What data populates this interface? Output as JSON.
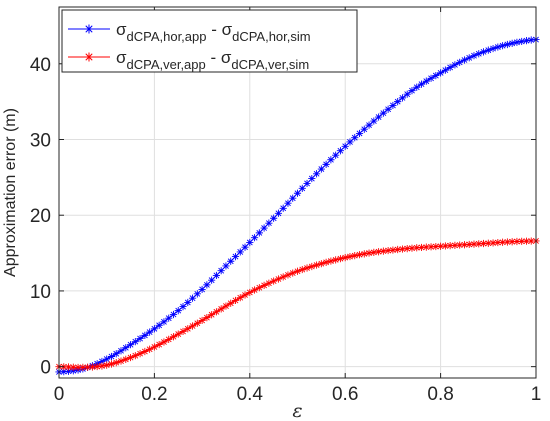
{
  "chart_data": {
    "type": "line",
    "title": "",
    "xlabel": "ε",
    "ylabel": "Approximation error (m)",
    "xlim": [
      0,
      1
    ],
    "ylim": [
      -1.5,
      47.5
    ],
    "x_ticks": [
      0,
      0.2,
      0.4,
      0.6,
      0.8,
      1
    ],
    "x_tick_labels": [
      "0",
      "0.2",
      "0.4",
      "0.6",
      "0.8",
      "1"
    ],
    "y_ticks": [
      0,
      10,
      20,
      30,
      40
    ],
    "y_tick_labels": [
      "0",
      "10",
      "20",
      "30",
      "40"
    ],
    "grid": true,
    "legend_position": "top-left",
    "marker": "asterisk",
    "series": [
      {
        "name": "σdCPA,hor,app - σdCPA,hor,sim",
        "legend": {
          "sym": "σ",
          "sub1": "dCPA,hor,app",
          "op": " - ",
          "sym2": "σ",
          "sub2": "dCPA,hor,sim"
        },
        "color": "#0000ff",
        "x": [
          0,
          0.05,
          0.1,
          0.15,
          0.2,
          0.25,
          0.3,
          0.35,
          0.4,
          0.45,
          0.5,
          0.55,
          0.6,
          0.65,
          0.7,
          0.75,
          0.8,
          0.85,
          0.9,
          0.95,
          1
        ],
        "y": [
          -0.7,
          -0.3,
          1.0,
          2.9,
          5.0,
          7.4,
          10.2,
          13.3,
          16.4,
          19.6,
          22.9,
          26.1,
          29.1,
          31.9,
          34.5,
          36.9,
          38.8,
          40.5,
          41.8,
          42.7,
          43.2
        ]
      },
      {
        "name": "σdCPA,ver,app - σdCPA,ver,sim",
        "legend": {
          "sym": "σ",
          "sub1": "dCPA,ver,app",
          "op": " - ",
          "sym2": "σ",
          "sub2": "dCPA,ver,sim"
        },
        "color": "#ff0000",
        "x": [
          0,
          0.05,
          0.1,
          0.15,
          0.2,
          0.25,
          0.3,
          0.35,
          0.4,
          0.45,
          0.5,
          0.55,
          0.6,
          0.65,
          0.7,
          0.75,
          0.8,
          0.85,
          0.9,
          0.95,
          1
        ],
        "y": [
          0.0,
          -0.1,
          0.2,
          1.2,
          2.6,
          4.3,
          6.1,
          8.0,
          9.8,
          11.3,
          12.6,
          13.6,
          14.4,
          15.0,
          15.4,
          15.7,
          15.9,
          16.1,
          16.3,
          16.5,
          16.6
        ]
      }
    ]
  }
}
